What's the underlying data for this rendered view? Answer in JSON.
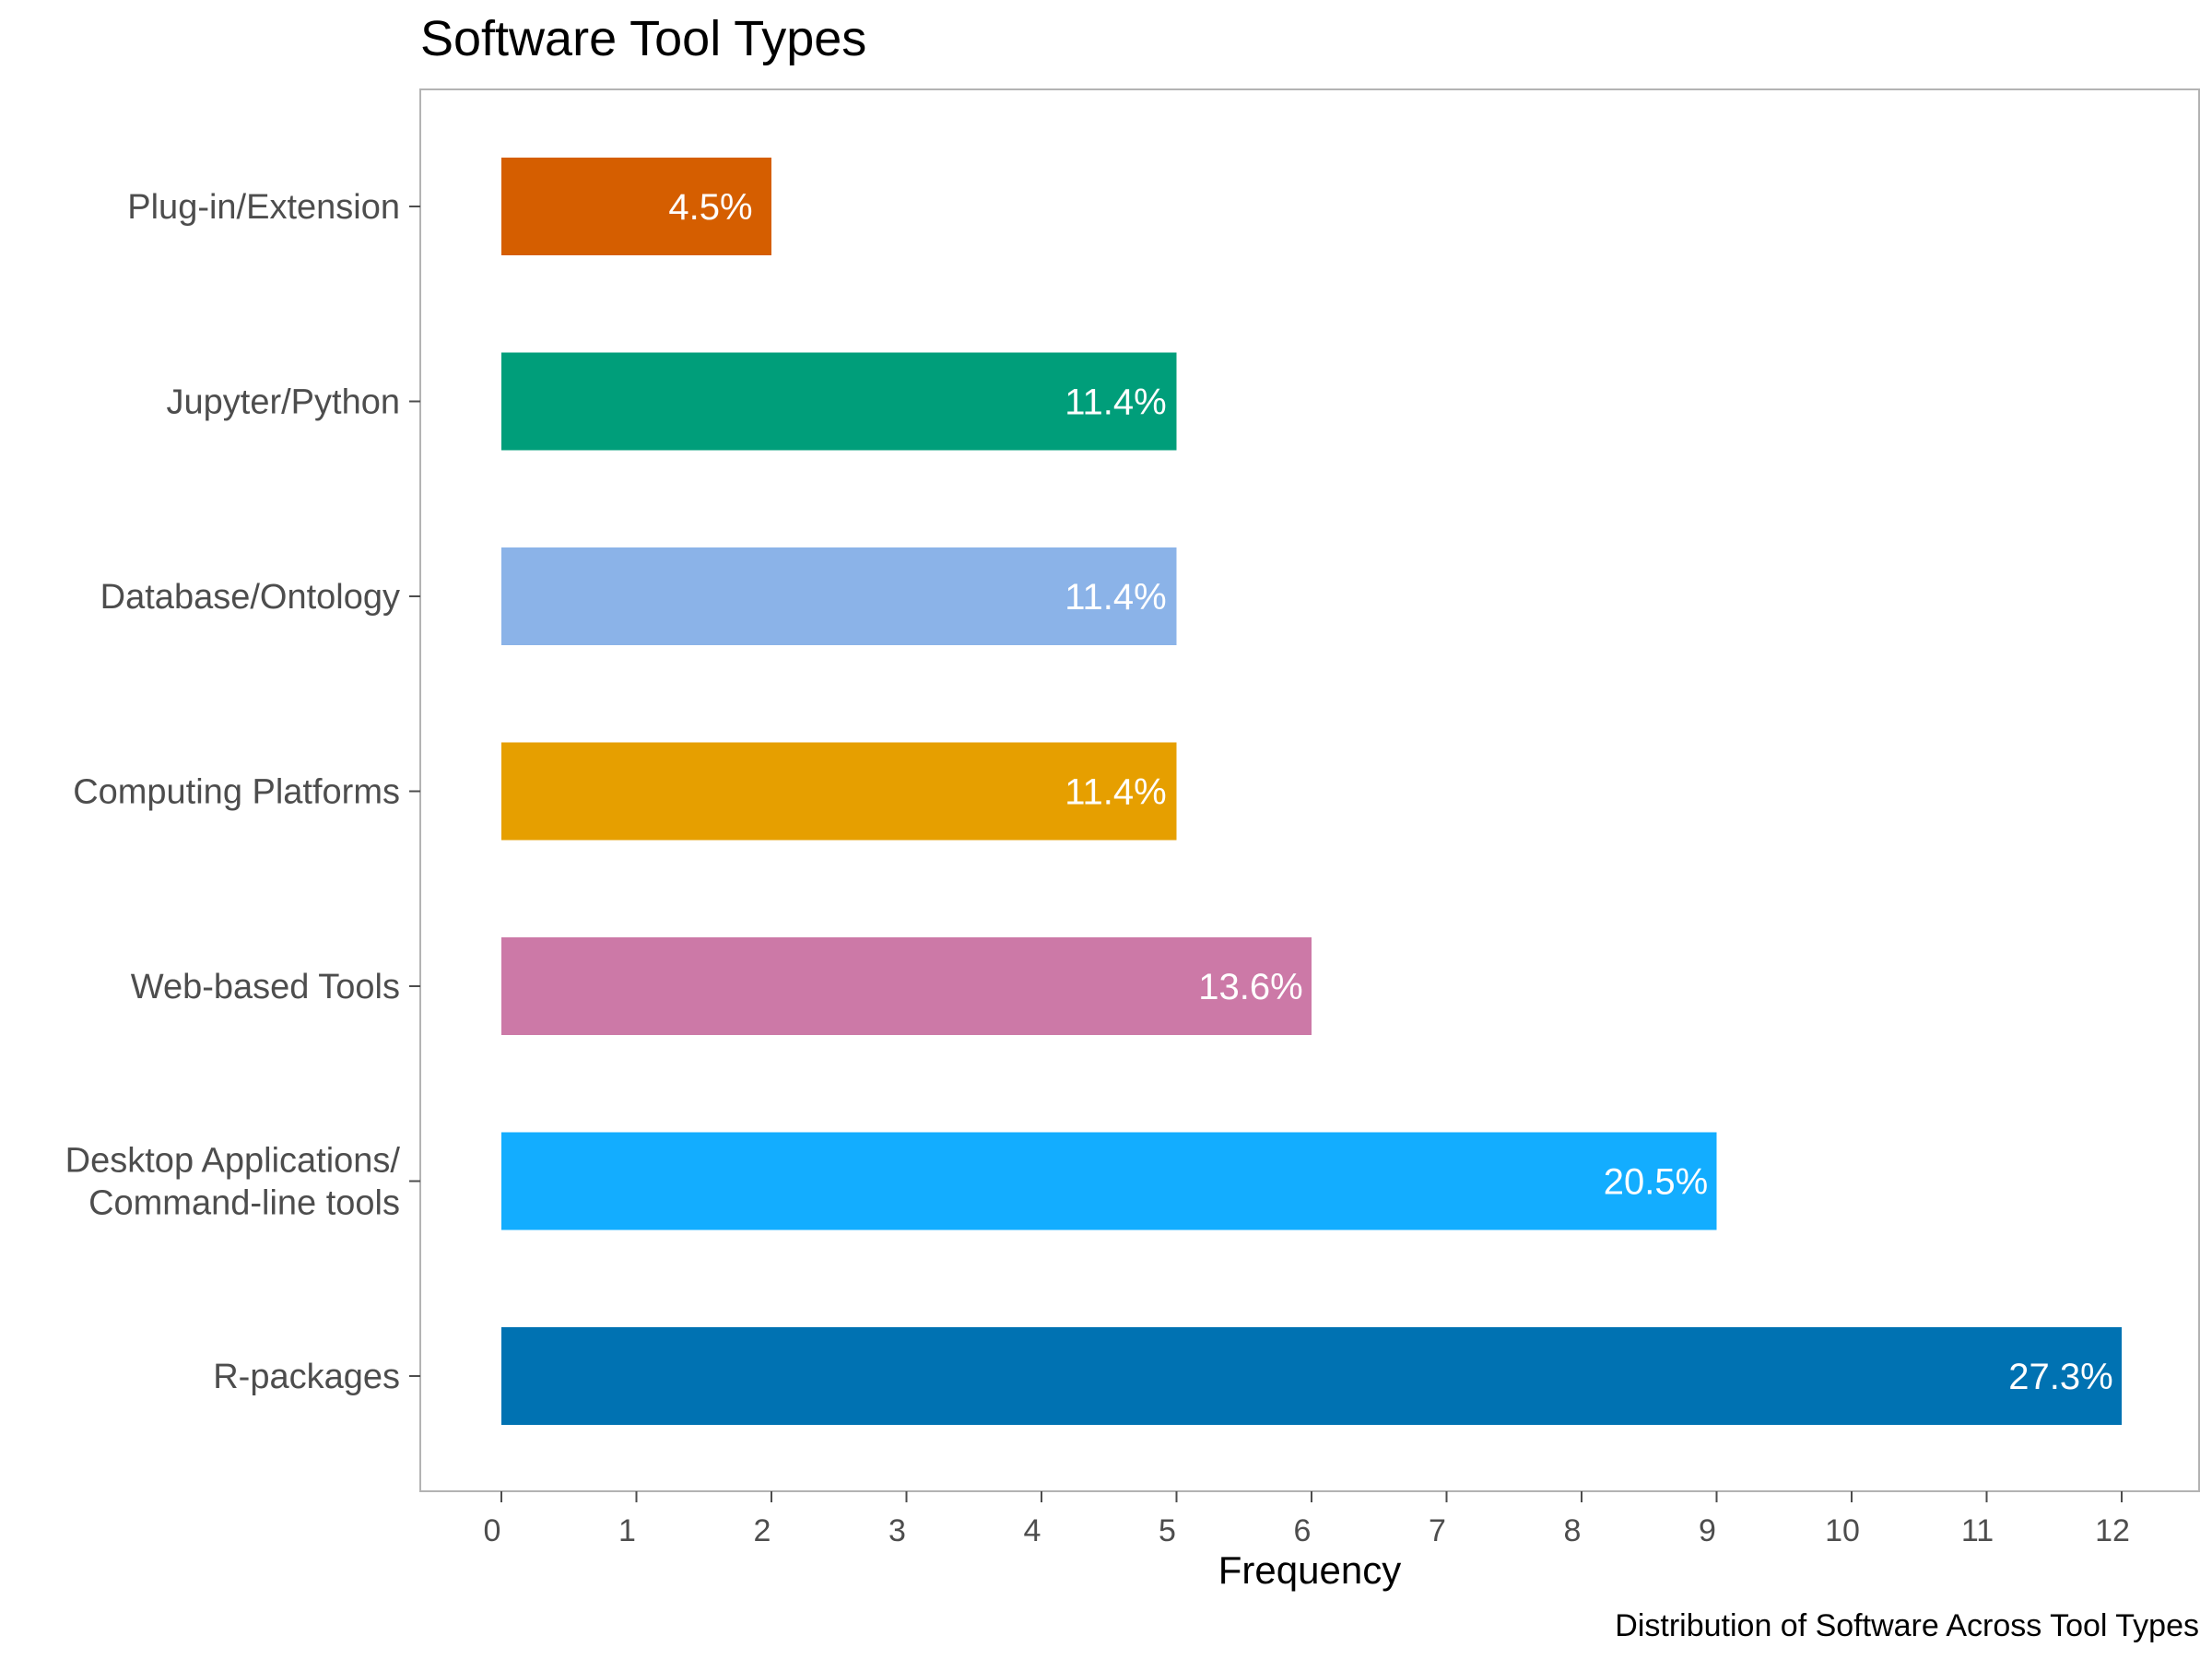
{
  "chart_data": {
    "type": "bar",
    "orientation": "horizontal",
    "title": "Software Tool Types",
    "xlabel": "Frequency",
    "ylabel": "",
    "caption": "Distribution of Software Across Tool Types",
    "categories": [
      "R-packages",
      "Desktop Applications/\nCommand-line tools",
      "Web-based Tools",
      "Computing Platforms",
      "Database/Ontology",
      "Jupyter/Python",
      "Plug-in/Extension"
    ],
    "values": [
      12,
      9,
      6,
      5,
      5,
      5,
      2
    ],
    "data_labels": [
      "27.3%",
      "20.5%",
      "13.6%",
      "11.4%",
      "11.4%",
      "11.4%",
      "4.5%"
    ],
    "colors": [
      "#0072B2",
      "#13ADFF",
      "#CC79A7",
      "#E69F00",
      "#8BB3E8",
      "#009E7A",
      "#D55E00"
    ],
    "xlim": [
      0,
      12
    ],
    "xticks": [
      0,
      1,
      2,
      3,
      4,
      5,
      6,
      7,
      8,
      9,
      10,
      11,
      12
    ],
    "grid": false,
    "legend": "none"
  }
}
